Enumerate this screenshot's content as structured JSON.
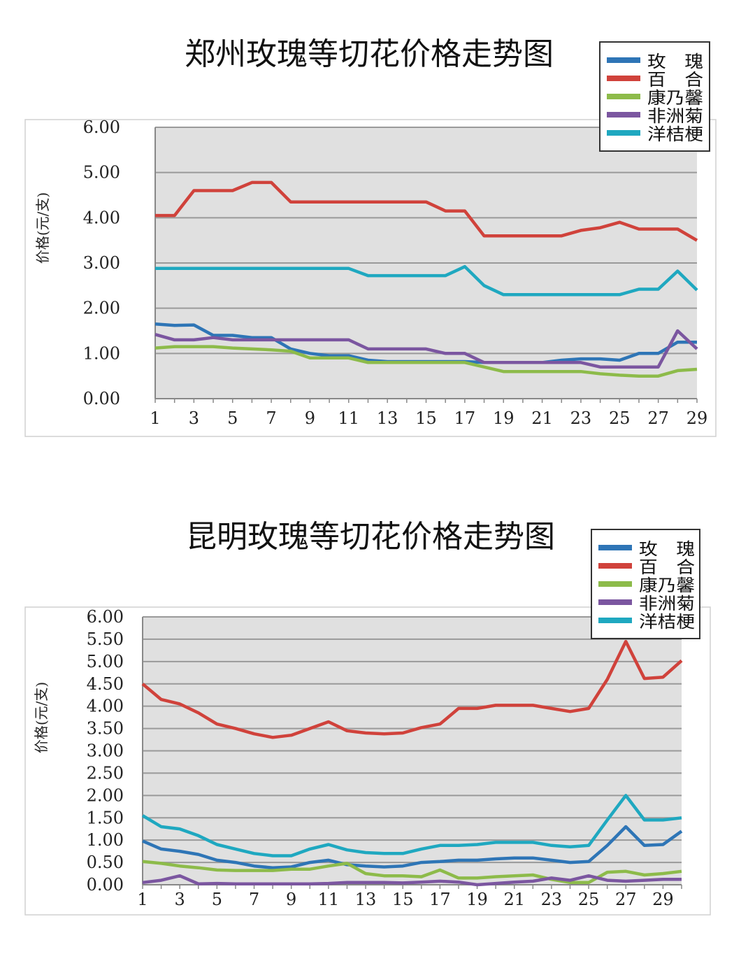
{
  "chart_data": [
    {
      "type": "line",
      "title": "郑州玫瑰等切花价格走势图",
      "ylabel": "价格(元/支)",
      "xlabel": "",
      "ylim": [
        0,
        6
      ],
      "yticks": [
        "0.00",
        "1.00",
        "2.00",
        "3.00",
        "4.00",
        "5.00",
        "6.00"
      ],
      "ytick_values": [
        0,
        1,
        2,
        3,
        4,
        5,
        6
      ],
      "xlim": [
        1,
        29
      ],
      "xticks": [
        "1",
        "3",
        "5",
        "7",
        "9",
        "11",
        "13",
        "15",
        "17",
        "19",
        "21",
        "23",
        "25",
        "27",
        "29"
      ],
      "grid": true,
      "legend_position": "top-right",
      "x": [
        1,
        2,
        3,
        4,
        5,
        6,
        7,
        8,
        9,
        10,
        11,
        12,
        13,
        14,
        15,
        16,
        17,
        18,
        19,
        20,
        21,
        22,
        23,
        24,
        25,
        26,
        27,
        28,
        29
      ],
      "series": [
        {
          "name": "玫　瑰",
          "color": "#2e75b6",
          "values": [
            1.65,
            1.62,
            1.63,
            1.4,
            1.4,
            1.35,
            1.35,
            1.1,
            1.0,
            0.95,
            0.95,
            0.85,
            0.82,
            0.82,
            0.82,
            0.82,
            0.82,
            0.8,
            0.8,
            0.8,
            0.8,
            0.85,
            0.88,
            0.88,
            0.85,
            1.0,
            1.0,
            1.25,
            1.25
          ]
        },
        {
          "name": "百　合",
          "color": "#d0423b",
          "values": [
            4.05,
            4.05,
            4.6,
            4.6,
            4.6,
            4.78,
            4.78,
            4.35,
            4.35,
            4.35,
            4.35,
            4.35,
            4.35,
            4.35,
            4.35,
            4.15,
            4.15,
            3.6,
            3.6,
            3.6,
            3.6,
            3.6,
            3.72,
            3.78,
            3.9,
            3.75,
            3.75,
            3.75,
            3.5
          ]
        },
        {
          "name": "康乃馨",
          "color": "#8dbb4a",
          "values": [
            1.12,
            1.15,
            1.15,
            1.15,
            1.12,
            1.1,
            1.08,
            1.05,
            0.9,
            0.9,
            0.9,
            0.8,
            0.8,
            0.8,
            0.8,
            0.8,
            0.8,
            0.7,
            0.6,
            0.6,
            0.6,
            0.6,
            0.6,
            0.55,
            0.52,
            0.5,
            0.5,
            0.62,
            0.65
          ]
        },
        {
          "name": "非洲菊",
          "color": "#7b56a0",
          "values": [
            1.42,
            1.3,
            1.3,
            1.35,
            1.3,
            1.3,
            1.3,
            1.3,
            1.3,
            1.3,
            1.3,
            1.1,
            1.1,
            1.1,
            1.1,
            1.0,
            1.0,
            0.8,
            0.8,
            0.8,
            0.8,
            0.8,
            0.8,
            0.7,
            0.7,
            0.7,
            0.7,
            1.5,
            1.1
          ]
        },
        {
          "name": "洋桔梗",
          "color": "#1fa8c0",
          "values": [
            2.88,
            2.88,
            2.88,
            2.88,
            2.88,
            2.88,
            2.88,
            2.88,
            2.88,
            2.88,
            2.88,
            2.72,
            2.72,
            2.72,
            2.72,
            2.72,
            2.92,
            2.5,
            2.3,
            2.3,
            2.3,
            2.3,
            2.3,
            2.3,
            2.3,
            2.42,
            2.42,
            2.82,
            2.4
          ]
        }
      ]
    },
    {
      "type": "line",
      "title": "昆明玫瑰等切花价格走势图",
      "ylabel": "价格(元/支)",
      "xlabel": "",
      "ylim": [
        0,
        6
      ],
      "yticks": [
        "0.00",
        "0.50",
        "1.00",
        "1.50",
        "2.00",
        "2.50",
        "3.00",
        "3.50",
        "4.00",
        "4.50",
        "5.00",
        "5.50",
        "6.00"
      ],
      "ytick_values": [
        0,
        0.5,
        1,
        1.5,
        2,
        2.5,
        3,
        3.5,
        4,
        4.5,
        5,
        5.5,
        6
      ],
      "xlim": [
        1,
        30
      ],
      "xticks": [
        "1",
        "3",
        "5",
        "7",
        "9",
        "11",
        "13",
        "15",
        "17",
        "19",
        "21",
        "23",
        "25",
        "27",
        "29"
      ],
      "grid": true,
      "legend_position": "top-right",
      "x": [
        1,
        2,
        3,
        4,
        5,
        6,
        7,
        8,
        9,
        10,
        11,
        12,
        13,
        14,
        15,
        16,
        17,
        18,
        19,
        20,
        21,
        22,
        23,
        24,
        25,
        26,
        27,
        28,
        29,
        30
      ],
      "series": [
        {
          "name": "玫　瑰",
          "color": "#2e75b6",
          "values": [
            0.98,
            0.8,
            0.75,
            0.68,
            0.55,
            0.5,
            0.42,
            0.38,
            0.4,
            0.5,
            0.55,
            0.45,
            0.42,
            0.4,
            0.42,
            0.5,
            0.52,
            0.55,
            0.55,
            0.58,
            0.6,
            0.6,
            0.55,
            0.5,
            0.52,
            0.88,
            1.3,
            0.88,
            0.9,
            1.2
          ]
        },
        {
          "name": "百　合",
          "color": "#d0423b",
          "values": [
            4.5,
            4.15,
            4.05,
            3.85,
            3.6,
            3.5,
            3.38,
            3.3,
            3.35,
            3.5,
            3.65,
            3.45,
            3.4,
            3.38,
            3.4,
            3.52,
            3.6,
            3.95,
            3.95,
            4.02,
            4.02,
            4.02,
            3.95,
            3.88,
            3.95,
            4.6,
            5.45,
            4.62,
            4.65,
            5.02
          ]
        },
        {
          "name": "康乃馨",
          "color": "#8dbb4a",
          "values": [
            0.52,
            0.48,
            0.42,
            0.38,
            0.33,
            0.32,
            0.32,
            0.32,
            0.35,
            0.35,
            0.42,
            0.48,
            0.25,
            0.2,
            0.2,
            0.18,
            0.33,
            0.15,
            0.15,
            0.18,
            0.2,
            0.22,
            0.12,
            0.05,
            0.05,
            0.28,
            0.3,
            0.22,
            0.25,
            0.3
          ]
        },
        {
          "name": "非洲菊",
          "color": "#7b56a0",
          "values": [
            0.05,
            0.1,
            0.2,
            0.02,
            0.03,
            0.02,
            0.02,
            0.02,
            0.02,
            0.02,
            0.03,
            0.05,
            0.05,
            0.05,
            0.04,
            0.06,
            0.08,
            0.06,
            0.0,
            0.03,
            0.06,
            0.08,
            0.15,
            0.1,
            0.2,
            0.1,
            0.08,
            0.1,
            0.12,
            0.12
          ]
        },
        {
          "name": "洋桔梗",
          "color": "#1fa8c0",
          "values": [
            1.55,
            1.3,
            1.25,
            1.1,
            0.9,
            0.8,
            0.7,
            0.65,
            0.65,
            0.8,
            0.9,
            0.78,
            0.72,
            0.7,
            0.7,
            0.8,
            0.88,
            0.88,
            0.9,
            0.95,
            0.95,
            0.95,
            0.88,
            0.85,
            0.88,
            1.45,
            2.0,
            1.45,
            1.45,
            1.5
          ]
        }
      ]
    }
  ]
}
